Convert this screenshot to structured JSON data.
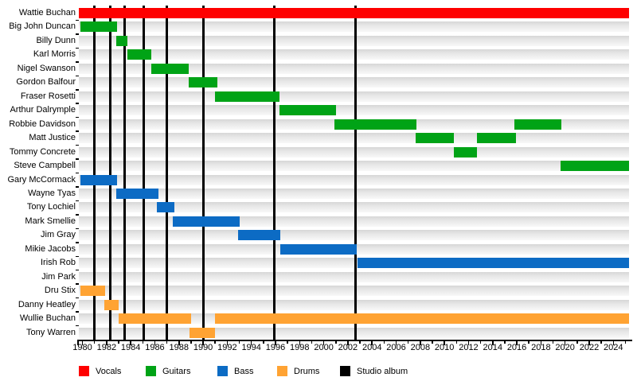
{
  "chart_data": {
    "type": "bar",
    "subtype": "gantt-membership-timeline",
    "title": "",
    "xlabel": "",
    "ylabel": "",
    "grid": false,
    "legend_position": "bottom",
    "axis": {
      "min": 1979.7,
      "max": 2025.3,
      "tick_start": 1980,
      "tick_end": 2025,
      "label_step": 2
    },
    "x_tick_labels": [
      "1980",
      "1982",
      "1984",
      "1986",
      "1988",
      "1990",
      "1992",
      "1994",
      "1996",
      "1998",
      "2000",
      "2002",
      "2004",
      "2006",
      "2008",
      "2010",
      "2012",
      "2014",
      "2016",
      "2018",
      "2020",
      "2022",
      "2024"
    ],
    "roles": {
      "vocals": "#fe0000",
      "guitars": "#00a316",
      "bass": "#0c6bc4",
      "drums": "#ffa333",
      "album": "#000000"
    },
    "members": [
      {
        "name": "Wattie Buchan",
        "role": "vocals",
        "segments": [
          [
            1979.7,
            2025.3
          ]
        ]
      },
      {
        "name": "Big John Duncan",
        "role": "guitars",
        "segments": [
          [
            1979.8,
            1982.9
          ]
        ]
      },
      {
        "name": "Billy Dunn",
        "role": "guitars",
        "segments": [
          [
            1982.8,
            1983.7
          ]
        ]
      },
      {
        "name": "Karl Morris",
        "role": "guitars",
        "segments": [
          [
            1983.7,
            1985.7
          ]
        ]
      },
      {
        "name": "Nigel Swanson",
        "role": "guitars",
        "segments": [
          [
            1985.7,
            1988.8
          ]
        ]
      },
      {
        "name": "Gordon Balfour",
        "role": "guitars",
        "segments": [
          [
            1988.8,
            1991.2
          ]
        ]
      },
      {
        "name": "Fraser Rosetti",
        "role": "guitars",
        "segments": [
          [
            1991.0,
            1996.3
          ]
        ]
      },
      {
        "name": "Arthur Dalrymple",
        "role": "guitars",
        "segments": [
          [
            1996.3,
            2001.0
          ]
        ]
      },
      {
        "name": "Robbie Davidson",
        "role": "guitars",
        "segments": [
          [
            2000.9,
            2007.7
          ],
          [
            2015.8,
            2019.7
          ]
        ]
      },
      {
        "name": "Matt Justice",
        "role": "guitars",
        "segments": [
          [
            2007.6,
            2010.8
          ],
          [
            2012.7,
            2015.9
          ]
        ]
      },
      {
        "name": "Tommy Concrete",
        "role": "guitars",
        "segments": [
          [
            2010.8,
            2012.7
          ]
        ]
      },
      {
        "name": "Steve Campbell",
        "role": "guitars",
        "segments": [
          [
            2019.6,
            2025.3
          ]
        ]
      },
      {
        "name": "Gary McCormack",
        "role": "bass",
        "segments": [
          [
            1979.8,
            1982.9
          ]
        ]
      },
      {
        "name": "Wayne Tyas",
        "role": "bass",
        "segments": [
          [
            1982.8,
            1986.3
          ]
        ]
      },
      {
        "name": "Tony Lochiel",
        "role": "bass",
        "segments": [
          [
            1986.2,
            1987.6
          ]
        ]
      },
      {
        "name": "Mark Smellie",
        "role": "bass",
        "segments": [
          [
            1987.5,
            1993.0
          ]
        ]
      },
      {
        "name": "Jim Gray",
        "role": "bass",
        "segments": [
          [
            1992.9,
            1996.4
          ]
        ]
      },
      {
        "name": "Mikie Jacobs",
        "role": "bass",
        "segments": [
          [
            1996.4,
            2002.7
          ]
        ]
      },
      {
        "name": "Irish Rob",
        "role": "bass",
        "segments": [
          [
            2002.8,
            2025.3
          ]
        ]
      },
      {
        "name": "Jim Park",
        "role": "bass",
        "segments": []
      },
      {
        "name": "Dru Stix",
        "role": "drums",
        "segments": [
          [
            1979.8,
            1981.9
          ]
        ]
      },
      {
        "name": "Danny Heatley",
        "role": "drums",
        "segments": [
          [
            1981.8,
            1983.0
          ]
        ]
      },
      {
        "name": "Wullie Buchan",
        "role": "drums",
        "segments": [
          [
            1983.0,
            1989.0
          ],
          [
            1991.0,
            2025.3
          ]
        ]
      },
      {
        "name": "Tony Warren",
        "role": "drums",
        "segments": [
          [
            1988.9,
            1991.0
          ]
        ]
      }
    ],
    "album_years": [
      1981.0,
      1982.3,
      1983.5,
      1985.1,
      1987.0,
      1990.0,
      1995.9,
      2002.6
    ],
    "legend": [
      {
        "label": "Vocals",
        "role": "vocals"
      },
      {
        "label": "Guitars",
        "role": "guitars"
      },
      {
        "label": "Bass",
        "role": "bass"
      },
      {
        "label": "Drums",
        "role": "drums"
      },
      {
        "label": "Studio album",
        "role": "album"
      }
    ]
  }
}
